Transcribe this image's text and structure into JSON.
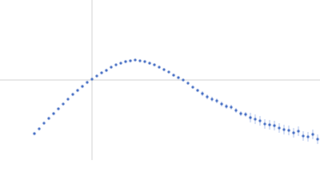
{
  "chart_data": {
    "type": "scatter",
    "xlim": [
      -1.15,
      2.85
    ],
    "ylim": [
      -1,
      1
    ],
    "reference_lines": {
      "x": [
        0
      ],
      "y": [
        0
      ],
      "color": "#cccccc"
    },
    "series": [
      {
        "color": "#3a65c0",
        "error_color": "#a9bce8",
        "x": [
          -0.72,
          -0.66,
          -0.6,
          -0.54,
          -0.48,
          -0.42,
          -0.36,
          -0.3,
          -0.24,
          -0.18,
          -0.12,
          -0.06,
          0,
          0.06,
          0.12,
          0.18,
          0.24,
          0.3,
          0.36,
          0.42,
          0.48,
          0.54,
          0.6,
          0.66,
          0.72,
          0.78,
          0.84,
          0.9,
          0.96,
          1.02,
          1.08,
          1.14,
          1.2,
          1.26,
          1.32,
          1.38,
          1.44,
          1.5,
          1.56,
          1.62,
          1.68,
          1.74,
          1.8,
          1.86,
          1.92,
          1.98,
          2.04,
          2.1,
          2.16,
          2.22,
          2.28,
          2.34,
          2.4,
          2.46,
          2.52,
          2.58,
          2.64,
          2.7,
          2.76,
          2.82
        ],
        "values": [
          -0.67,
          -0.61,
          -0.54,
          -0.48,
          -0.42,
          -0.36,
          -0.3,
          -0.24,
          -0.18,
          -0.13,
          -0.08,
          -0.03,
          0.01,
          0.05,
          0.09,
          0.12,
          0.16,
          0.19,
          0.21,
          0.23,
          0.24,
          0.25,
          0.24,
          0.23,
          0.21,
          0.19,
          0.16,
          0.13,
          0.1,
          0.06,
          0.03,
          0.0,
          -0.04,
          -0.09,
          -0.13,
          -0.17,
          -0.21,
          -0.24,
          -0.26,
          -0.3,
          -0.33,
          -0.34,
          -0.38,
          -0.42,
          -0.43,
          -0.47,
          -0.49,
          -0.51,
          -0.55,
          -0.56,
          -0.57,
          -0.6,
          -0.62,
          -0.63,
          -0.66,
          -0.64,
          -0.7,
          -0.71,
          -0.68,
          -0.74
        ],
        "errors": [
          0.005,
          0.005,
          0.005,
          0.005,
          0.005,
          0.005,
          0.005,
          0.005,
          0.005,
          0.005,
          0.005,
          0.005,
          0.005,
          0.005,
          0.005,
          0.005,
          0.005,
          0.005,
          0.005,
          0.005,
          0.01,
          0.01,
          0.01,
          0.01,
          0.01,
          0.01,
          0.01,
          0.01,
          0.01,
          0.01,
          0.01,
          0.01,
          0.01,
          0.01,
          0.01,
          0.03,
          0.03,
          0.03,
          0.03,
          0.03,
          0.03,
          0.03,
          0.03,
          0.03,
          0.03,
          0.06,
          0.06,
          0.06,
          0.06,
          0.06,
          0.06,
          0.06,
          0.06,
          0.06,
          0.06,
          0.06,
          0.06,
          0.06,
          0.06,
          0.06
        ]
      }
    ]
  }
}
